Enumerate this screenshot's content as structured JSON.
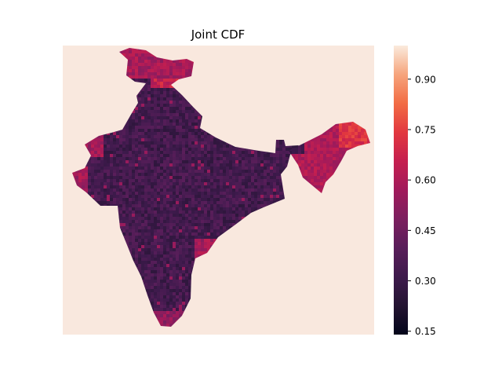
{
  "chart_data": {
    "type": "heatmap",
    "title": "Joint CDF",
    "xlabel": "",
    "ylabel": "",
    "colormap": "rocket",
    "colors": {
      "background_cell": "#f9e8de",
      "low": "#03051a",
      "high": "#faebdd"
    },
    "value_range": [
      0.14,
      1.0
    ],
    "colorbar": {
      "ticks": [
        0.15,
        0.3,
        0.45,
        0.6,
        0.75,
        0.9
      ],
      "tick_labels": [
        "0.15",
        "0.30",
        "0.45",
        "0.60",
        "0.75",
        "0.90"
      ]
    },
    "regions": [
      {
        "region": "mainland",
        "typical_value": 0.33
      },
      {
        "region": "far-north",
        "typical_value": 0.58
      },
      {
        "region": "north-east",
        "typical_value": 0.6
      },
      {
        "region": "western-coast-edge",
        "typical_value": 0.57
      }
    ],
    "grid": false,
    "axes_visible": false
  }
}
